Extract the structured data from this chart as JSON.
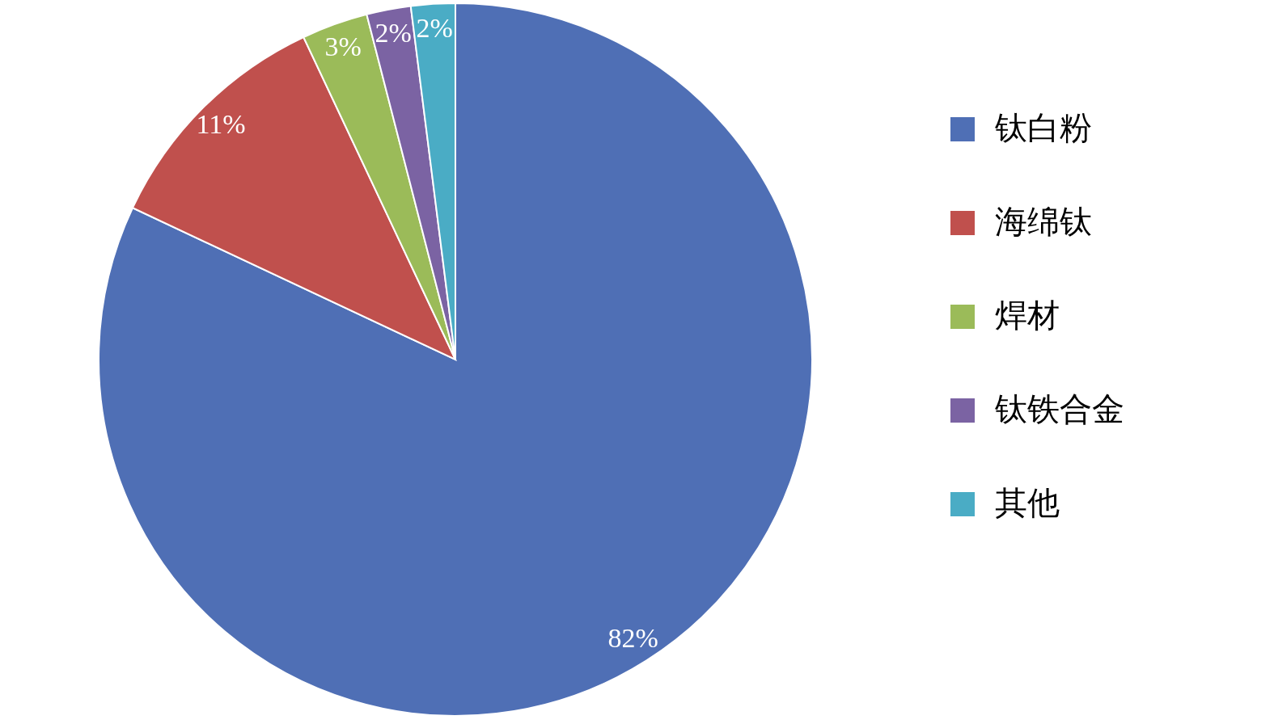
{
  "chart_data": {
    "type": "pie",
    "categories": [
      "钛白粉",
      "海绵钛",
      "焊材",
      "钛铁合金",
      "其他"
    ],
    "values": [
      82,
      11,
      3,
      2,
      2
    ],
    "colors": [
      "#4f6fb5",
      "#c0504d",
      "#9bbb59",
      "#7b63a3",
      "#4aacc5"
    ],
    "value_labels": [
      "82%",
      "11%",
      "3%",
      "2%",
      "2%"
    ],
    "legend": "right"
  }
}
